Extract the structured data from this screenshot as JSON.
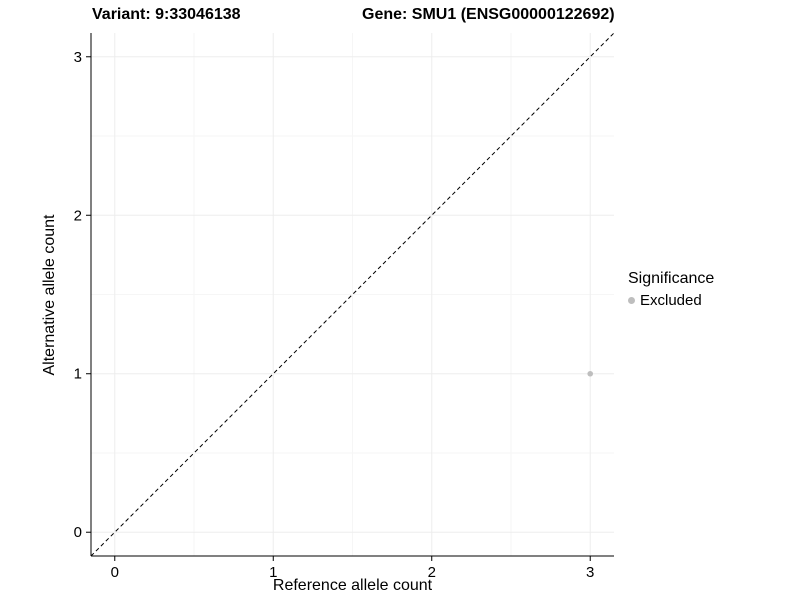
{
  "chart_data": {
    "type": "scatter",
    "title_left": "Variant: 9:33046138",
    "title_right": "Gene: SMU1 (ENSG00000122692)",
    "xlabel": "Reference allele count",
    "ylabel": "Alternative allele count",
    "xlim": [
      -0.15,
      3.15
    ],
    "ylim": [
      -0.15,
      3.15
    ],
    "xticks": [
      0,
      1,
      2,
      3
    ],
    "yticks": [
      0,
      1,
      2,
      3
    ],
    "minor_ticks": [
      0.5,
      1.5,
      2.5
    ],
    "grid": true,
    "identity_line": {
      "style": "dashed",
      "color": "#000000",
      "from": [
        -0.15,
        -0.15
      ],
      "to": [
        3.15,
        3.15
      ]
    },
    "series": [
      {
        "name": "Excluded",
        "color": "#bebebe",
        "points": [
          {
            "x": 3,
            "y": 1
          }
        ]
      }
    ],
    "legend": {
      "title": "Significance",
      "position": "right",
      "entries": [
        {
          "label": "Excluded",
          "color": "#bebebe"
        }
      ]
    },
    "colors": {
      "grid_major": "#ededed",
      "grid_minor": "#f6f6f6",
      "axis": "#000000",
      "tick_text": "#000000",
      "point": "#bebebe",
      "panel_background": "#ffffff"
    }
  }
}
